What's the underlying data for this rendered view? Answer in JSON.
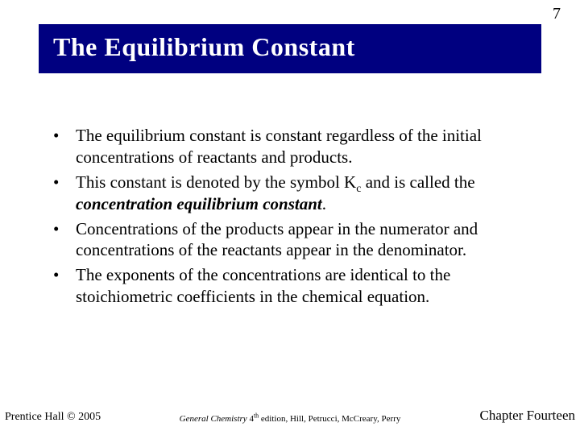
{
  "page_number": "7",
  "title": "The Equilibrium Constant",
  "colors": {
    "title_bg": "#000080",
    "title_fg": "#ffffff",
    "background": "#ffffff",
    "text": "#000000"
  },
  "typography": {
    "title_fontsize_pt": 32,
    "body_fontsize_pt": 21,
    "footer_left_fontsize_pt": 14,
    "footer_center_fontsize_pt": 11,
    "footer_right_fontsize_pt": 17,
    "font_family": "Times New Roman"
  },
  "bullets": {
    "b0": "The equilibrium constant is constant regardless of the initial concentrations of reactants and products.",
    "b1_pre": "This constant is denoted by the symbol K",
    "b1_sub": "c",
    "b1_mid": " and is called the ",
    "b1_bolditalic": "concentration equilibrium constant",
    "b1_post": ".",
    "b2": "Concentrations of the products appear in the numerator and concentrations of the reactants appear in the denominator.",
    "b3": "The exponents of the concentrations are identical to the stoichiometric coefficients in the chemical equation."
  },
  "footer": {
    "left": "Prentice Hall © 2005",
    "center_italic": "General Chemistry",
    "center_rest_pre": " 4",
    "center_sup": "th",
    "center_rest_post": " edition, Hill, Petrucci, McCreary, Perry",
    "right": "Chapter Fourteen"
  }
}
